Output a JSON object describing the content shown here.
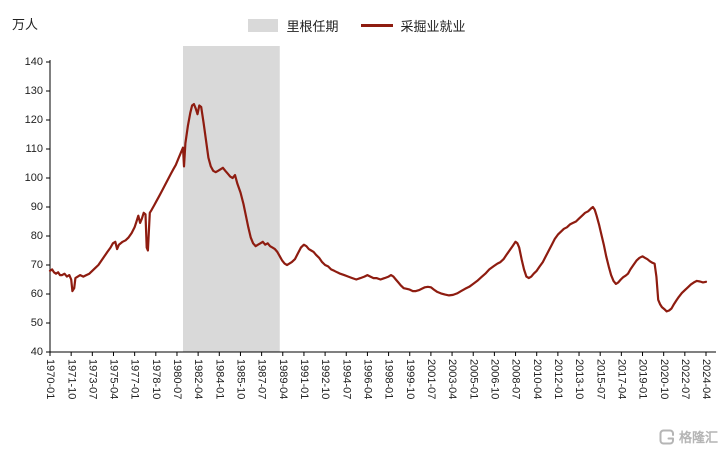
{
  "chart_data": {
    "type": "line",
    "title": "",
    "ylabel": "万人",
    "ylim": [
      40,
      140
    ],
    "ytick_step": 10,
    "x_domain": [
      1970.0,
      2024.25
    ],
    "xtick_labels": [
      "1970-01",
      "1971-10",
      "1973-07",
      "1975-04",
      "1977-01",
      "1978-10",
      "1980-07",
      "1982-04",
      "1984-01",
      "1985-10",
      "1987-07",
      "1989-04",
      "1991-01",
      "1992-10",
      "1994-07",
      "1996-04",
      "1998-01",
      "1999-10",
      "2001-07",
      "2003-04",
      "2005-01",
      "2006-10",
      "2008-07",
      "2010-04",
      "2012-01",
      "2013-10",
      "2015-07",
      "2017-04",
      "2019-01",
      "2020-10",
      "2022-07",
      "2024-04"
    ],
    "xtick_interval_years": 1.75,
    "legend": [
      "里根任期",
      "采掘业就业"
    ],
    "grid": false,
    "legend_position": "top-center",
    "band": {
      "label": "里根任期",
      "x_start": 1981.0,
      "x_end": 1989.0,
      "color": "#d9d9d9"
    },
    "series": [
      {
        "name": "采掘业就业",
        "color": "#8e1c10",
        "points": [
          [
            1970.0,
            68
          ],
          [
            1970.17,
            68.5
          ],
          [
            1970.33,
            67.5
          ],
          [
            1970.5,
            67
          ],
          [
            1970.67,
            67.5
          ],
          [
            1970.83,
            66.5
          ],
          [
            1971.0,
            66.5
          ],
          [
            1971.2,
            67
          ],
          [
            1971.4,
            66
          ],
          [
            1971.6,
            66.5
          ],
          [
            1971.75,
            65
          ],
          [
            1971.85,
            61
          ],
          [
            1972.0,
            62
          ],
          [
            1972.1,
            65.5
          ],
          [
            1972.3,
            66
          ],
          [
            1972.5,
            66.5
          ],
          [
            1972.75,
            66
          ],
          [
            1973.0,
            66.5
          ],
          [
            1973.25,
            67
          ],
          [
            1973.5,
            68
          ],
          [
            1973.75,
            69
          ],
          [
            1974.0,
            70
          ],
          [
            1974.25,
            71.5
          ],
          [
            1974.5,
            73
          ],
          [
            1974.75,
            74.5
          ],
          [
            1975.0,
            76
          ],
          [
            1975.2,
            77.5
          ],
          [
            1975.4,
            78
          ],
          [
            1975.55,
            75.5
          ],
          [
            1975.7,
            77
          ],
          [
            1976.0,
            78
          ],
          [
            1976.25,
            78.5
          ],
          [
            1976.5,
            79.5
          ],
          [
            1976.75,
            81
          ],
          [
            1977.0,
            83
          ],
          [
            1977.15,
            85
          ],
          [
            1977.3,
            87
          ],
          [
            1977.45,
            84.5
          ],
          [
            1977.6,
            86
          ],
          [
            1977.75,
            88
          ],
          [
            1977.9,
            87.5
          ],
          [
            1978.0,
            76
          ],
          [
            1978.1,
            75
          ],
          [
            1978.25,
            88
          ],
          [
            1978.4,
            89
          ],
          [
            1978.6,
            90.5
          ],
          [
            1978.8,
            92
          ],
          [
            1979.0,
            93.5
          ],
          [
            1979.25,
            95.5
          ],
          [
            1979.5,
            97.5
          ],
          [
            1979.75,
            99.5
          ],
          [
            1980.0,
            101.5
          ],
          [
            1980.2,
            103
          ],
          [
            1980.4,
            104.5
          ],
          [
            1980.6,
            106.5
          ],
          [
            1980.8,
            108.5
          ],
          [
            1981.0,
            110.5
          ],
          [
            1981.08,
            104
          ],
          [
            1981.2,
            112
          ],
          [
            1981.4,
            118
          ],
          [
            1981.6,
            122.5
          ],
          [
            1981.75,
            125
          ],
          [
            1981.9,
            125.5
          ],
          [
            1982.05,
            124
          ],
          [
            1982.2,
            122
          ],
          [
            1982.35,
            125
          ],
          [
            1982.5,
            124.5
          ],
          [
            1982.7,
            119
          ],
          [
            1982.9,
            113
          ],
          [
            1983.1,
            107
          ],
          [
            1983.3,
            104
          ],
          [
            1983.5,
            102.5
          ],
          [
            1983.7,
            102
          ],
          [
            1983.9,
            102.5
          ],
          [
            1984.1,
            103
          ],
          [
            1984.3,
            103.5
          ],
          [
            1984.5,
            102.5
          ],
          [
            1984.7,
            101.5
          ],
          [
            1984.9,
            100.5
          ],
          [
            1985.1,
            100
          ],
          [
            1985.3,
            101
          ],
          [
            1985.5,
            98
          ],
          [
            1985.75,
            95
          ],
          [
            1986.0,
            91
          ],
          [
            1986.2,
            87
          ],
          [
            1986.4,
            83
          ],
          [
            1986.6,
            79.5
          ],
          [
            1986.8,
            77.5
          ],
          [
            1987.0,
            76.5
          ],
          [
            1987.2,
            77
          ],
          [
            1987.4,
            77.5
          ],
          [
            1987.6,
            78
          ],
          [
            1987.8,
            77
          ],
          [
            1988.0,
            77.5
          ],
          [
            1988.2,
            76.5
          ],
          [
            1988.4,
            76
          ],
          [
            1988.6,
            75.5
          ],
          [
            1988.8,
            74.5
          ],
          [
            1989.0,
            73
          ],
          [
            1989.2,
            71.5
          ],
          [
            1989.4,
            70.5
          ],
          [
            1989.6,
            70
          ],
          [
            1989.8,
            70.5
          ],
          [
            1990.0,
            71
          ],
          [
            1990.25,
            72
          ],
          [
            1990.5,
            74
          ],
          [
            1990.75,
            76
          ],
          [
            1991.0,
            77
          ],
          [
            1991.2,
            76.5
          ],
          [
            1991.4,
            75.5
          ],
          [
            1991.6,
            75
          ],
          [
            1991.8,
            74.5
          ],
          [
            1992.0,
            73.5
          ],
          [
            1992.25,
            72.5
          ],
          [
            1992.5,
            71
          ],
          [
            1992.75,
            70
          ],
          [
            1993.0,
            69.5
          ],
          [
            1993.25,
            68.5
          ],
          [
            1993.5,
            68
          ],
          [
            1993.75,
            67.5
          ],
          [
            1994.0,
            67
          ],
          [
            1994.33,
            66.5
          ],
          [
            1994.67,
            66
          ],
          [
            1995.0,
            65.5
          ],
          [
            1995.33,
            65
          ],
          [
            1995.67,
            65.5
          ],
          [
            1996.0,
            66
          ],
          [
            1996.25,
            66.5
          ],
          [
            1996.5,
            66
          ],
          [
            1996.75,
            65.5
          ],
          [
            1997.0,
            65.5
          ],
          [
            1997.33,
            65
          ],
          [
            1997.67,
            65.5
          ],
          [
            1998.0,
            66
          ],
          [
            1998.2,
            66.5
          ],
          [
            1998.4,
            66
          ],
          [
            1998.6,
            65
          ],
          [
            1998.8,
            64
          ],
          [
            1999.0,
            63
          ],
          [
            1999.25,
            62
          ],
          [
            1999.5,
            61.8
          ],
          [
            1999.75,
            61.5
          ],
          [
            2000.0,
            61
          ],
          [
            2000.25,
            61
          ],
          [
            2000.5,
            61.3
          ],
          [
            2000.75,
            61.8
          ],
          [
            2001.0,
            62.3
          ],
          [
            2001.25,
            62.5
          ],
          [
            2001.5,
            62.3
          ],
          [
            2001.75,
            61.5
          ],
          [
            2002.0,
            60.8
          ],
          [
            2002.33,
            60.2
          ],
          [
            2002.67,
            59.8
          ],
          [
            2003.0,
            59.5
          ],
          [
            2003.33,
            59.7
          ],
          [
            2003.67,
            60.2
          ],
          [
            2004.0,
            61
          ],
          [
            2004.33,
            61.8
          ],
          [
            2004.67,
            62.5
          ],
          [
            2005.0,
            63.5
          ],
          [
            2005.33,
            64.5
          ],
          [
            2005.67,
            65.8
          ],
          [
            2006.0,
            67
          ],
          [
            2006.33,
            68.5
          ],
          [
            2006.67,
            69.5
          ],
          [
            2007.0,
            70.5
          ],
          [
            2007.25,
            71
          ],
          [
            2007.5,
            72
          ],
          [
            2007.75,
            73.5
          ],
          [
            2008.0,
            75
          ],
          [
            2008.25,
            76.5
          ],
          [
            2008.5,
            78
          ],
          [
            2008.65,
            77.5
          ],
          [
            2008.8,
            76
          ],
          [
            2009.0,
            72
          ],
          [
            2009.2,
            68.5
          ],
          [
            2009.4,
            66
          ],
          [
            2009.6,
            65.5
          ],
          [
            2009.8,
            66
          ],
          [
            2010.0,
            67
          ],
          [
            2010.25,
            68
          ],
          [
            2010.5,
            69.5
          ],
          [
            2010.75,
            71
          ],
          [
            2011.0,
            73
          ],
          [
            2011.25,
            75
          ],
          [
            2011.5,
            77
          ],
          [
            2011.75,
            79
          ],
          [
            2012.0,
            80.5
          ],
          [
            2012.25,
            81.5
          ],
          [
            2012.5,
            82.5
          ],
          [
            2012.75,
            83
          ],
          [
            2013.0,
            84
          ],
          [
            2013.25,
            84.5
          ],
          [
            2013.5,
            85
          ],
          [
            2013.75,
            86
          ],
          [
            2014.0,
            87
          ],
          [
            2014.25,
            88
          ],
          [
            2014.5,
            88.5
          ],
          [
            2014.75,
            89.5
          ],
          [
            2014.9,
            90
          ],
          [
            2015.05,
            89
          ],
          [
            2015.2,
            87
          ],
          [
            2015.4,
            84
          ],
          [
            2015.6,
            80.5
          ],
          [
            2015.8,
            77
          ],
          [
            2016.0,
            73
          ],
          [
            2016.2,
            69.5
          ],
          [
            2016.4,
            66.5
          ],
          [
            2016.6,
            64.5
          ],
          [
            2016.8,
            63.5
          ],
          [
            2017.0,
            64
          ],
          [
            2017.2,
            65
          ],
          [
            2017.4,
            65.8
          ],
          [
            2017.6,
            66.3
          ],
          [
            2017.8,
            67
          ],
          [
            2018.0,
            68.5
          ],
          [
            2018.25,
            70
          ],
          [
            2018.5,
            71.5
          ],
          [
            2018.75,
            72.5
          ],
          [
            2019.0,
            73
          ],
          [
            2019.2,
            72.5
          ],
          [
            2019.4,
            72
          ],
          [
            2019.6,
            71.3
          ],
          [
            2019.8,
            70.8
          ],
          [
            2020.0,
            70.5
          ],
          [
            2020.15,
            66
          ],
          [
            2020.3,
            58
          ],
          [
            2020.45,
            56.5
          ],
          [
            2020.6,
            55.5
          ],
          [
            2020.8,
            54.8
          ],
          [
            2021.0,
            54
          ],
          [
            2021.2,
            54.3
          ],
          [
            2021.4,
            55
          ],
          [
            2021.6,
            56.5
          ],
          [
            2021.8,
            57.8
          ],
          [
            2022.0,
            59
          ],
          [
            2022.25,
            60.3
          ],
          [
            2022.5,
            61.3
          ],
          [
            2022.75,
            62.3
          ],
          [
            2023.0,
            63.3
          ],
          [
            2023.25,
            64
          ],
          [
            2023.5,
            64.5
          ],
          [
            2023.75,
            64.3
          ],
          [
            2024.0,
            64
          ],
          [
            2024.25,
            64.2
          ]
        ]
      }
    ]
  },
  "watermark": {
    "text": "格隆汇"
  },
  "colors": {
    "axis": "#000000",
    "tick_text": "#222222",
    "watermark": "#b5b5b5"
  }
}
